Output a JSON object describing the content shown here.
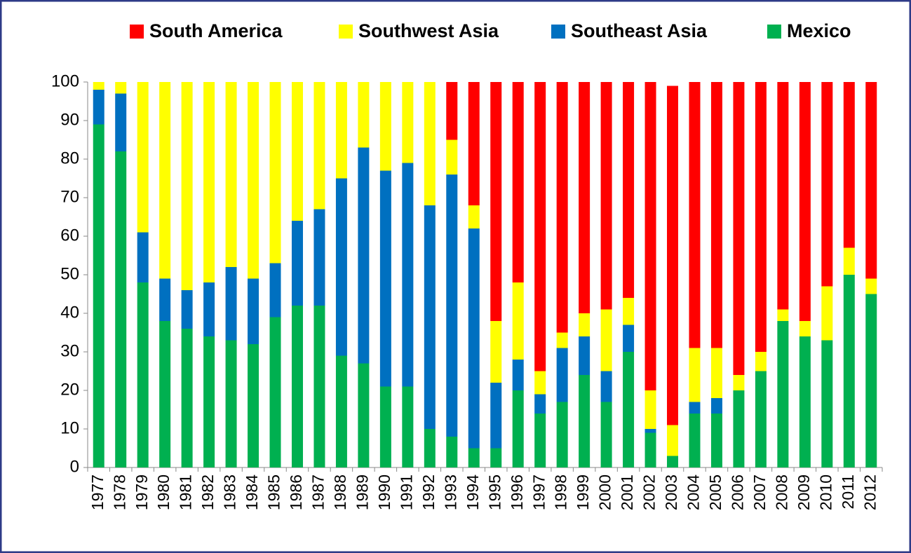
{
  "chart_data": {
    "type": "stacked_bar",
    "categories": [
      "1977",
      "1978",
      "1979",
      "1980",
      "1981",
      "1982",
      "1983",
      "1984",
      "1985",
      "1986",
      "1987",
      "1988",
      "1989",
      "1990",
      "1991",
      "1992",
      "1993",
      "1994",
      "1995",
      "1996",
      "1997",
      "1998",
      "1999",
      "2000",
      "2001",
      "2002",
      "2003",
      "2004",
      "2005",
      "2006",
      "2007",
      "2008",
      "2009",
      "2010",
      "2011",
      "2012"
    ],
    "series": [
      {
        "name": "South America",
        "color": "#ff0000",
        "values": [
          0,
          0,
          0,
          0,
          0,
          0,
          0,
          0,
          0,
          0,
          0,
          0,
          0,
          0,
          0,
          0,
          15,
          32,
          62,
          52,
          75,
          65,
          60,
          59,
          56,
          80,
          88,
          69,
          69,
          76,
          70,
          59,
          62,
          53,
          43,
          51
        ]
      },
      {
        "name": "Southwest Asia",
        "color": "#ffff00",
        "values": [
          2,
          3,
          39,
          51,
          54,
          52,
          48,
          51,
          47,
          36,
          33,
          25,
          17,
          23,
          21,
          32,
          9,
          6,
          16,
          20,
          6,
          4,
          6,
          16,
          7,
          10,
          8,
          14,
          13,
          4,
          5,
          3,
          4,
          14,
          7,
          4
        ]
      },
      {
        "name": "Southeast Asia",
        "color": "#0070c0",
        "values": [
          9,
          15,
          13,
          11,
          10,
          14,
          19,
          17,
          14,
          22,
          25,
          46,
          56,
          56,
          58,
          58,
          68,
          57,
          17,
          8,
          5,
          14,
          10,
          8,
          7,
          1,
          0,
          3,
          4,
          0,
          0,
          0,
          0,
          0,
          0,
          0
        ]
      },
      {
        "name": "Mexico",
        "color": "#00b050",
        "values": [
          89,
          82,
          48,
          38,
          36,
          34,
          33,
          32,
          39,
          42,
          42,
          29,
          27,
          21,
          21,
          10,
          8,
          5,
          5,
          20,
          14,
          17,
          24,
          17,
          30,
          9,
          3,
          14,
          14,
          20,
          25,
          38,
          34,
          33,
          50,
          45
        ]
      }
    ],
    "ylim": [
      0,
      100
    ],
    "yticks": [
      0,
      10,
      20,
      30,
      40,
      50,
      60,
      70,
      80,
      90,
      100
    ],
    "grid": false,
    "legend": "top"
  }
}
